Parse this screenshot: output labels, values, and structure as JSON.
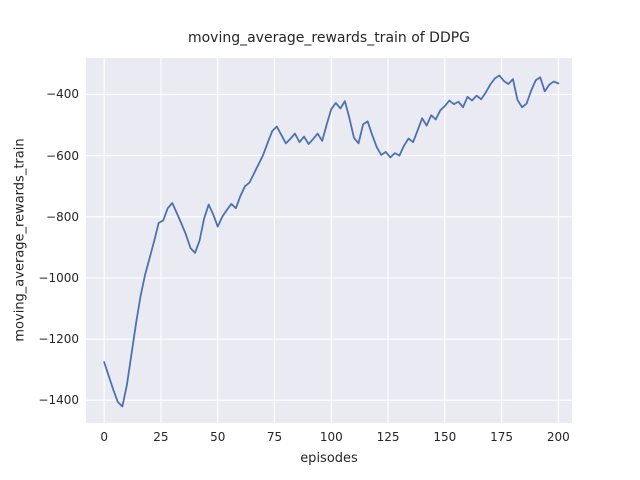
{
  "figure": {
    "background": "#ffffff",
    "axes_background": "#eaeaf2",
    "grid_color": "#ffffff",
    "text_color": "#262626"
  },
  "chart_data": {
    "type": "line",
    "title": "moving_average_rewards_train of DDPG",
    "xlabel": "episodes",
    "ylabel": "moving_average_rewards_train",
    "line_color": "#4c72b0",
    "line_width": 1.8,
    "grid": true,
    "legend": null,
    "xlim": [
      -8,
      206
    ],
    "ylim": [
      -1474,
      -281
    ],
    "xticks": [
      0,
      25,
      50,
      75,
      100,
      125,
      150,
      175,
      200
    ],
    "yticks": [
      -1400,
      -1200,
      -1000,
      -800,
      -600,
      -400
    ],
    "x": [
      0,
      2,
      4,
      6,
      8,
      10,
      12,
      14,
      16,
      18,
      20,
      22,
      24,
      26,
      28,
      30,
      32,
      34,
      36,
      38,
      40,
      42,
      44,
      46,
      48,
      50,
      52,
      54,
      56,
      58,
      60,
      62,
      64,
      66,
      68,
      70,
      72,
      74,
      76,
      78,
      80,
      82,
      84,
      86,
      88,
      90,
      92,
      94,
      96,
      98,
      100,
      102,
      104,
      106,
      108,
      110,
      112,
      114,
      116,
      118,
      120,
      122,
      124,
      126,
      128,
      130,
      132,
      134,
      136,
      138,
      140,
      142,
      144,
      146,
      148,
      150,
      152,
      154,
      156,
      158,
      160,
      162,
      164,
      166,
      168,
      170,
      172,
      174,
      176,
      178,
      180,
      182,
      184,
      186,
      188,
      190,
      192,
      194,
      196,
      198,
      200
    ],
    "y": [
      -1275,
      -1320,
      -1365,
      -1405,
      -1420,
      -1350,
      -1250,
      -1150,
      -1060,
      -990,
      -935,
      -880,
      -820,
      -812,
      -772,
      -755,
      -788,
      -822,
      -858,
      -902,
      -918,
      -878,
      -806,
      -760,
      -792,
      -832,
      -800,
      -778,
      -758,
      -772,
      -732,
      -700,
      -688,
      -658,
      -628,
      -598,
      -558,
      -520,
      -505,
      -532,
      -560,
      -545,
      -528,
      -556,
      -538,
      -562,
      -546,
      -528,
      -552,
      -498,
      -448,
      -428,
      -446,
      -422,
      -478,
      -542,
      -560,
      -498,
      -488,
      -532,
      -572,
      -598,
      -588,
      -606,
      -592,
      -600,
      -568,
      -544,
      -556,
      -518,
      -478,
      -502,
      -468,
      -482,
      -452,
      -438,
      -420,
      -432,
      -424,
      -442,
      -408,
      -420,
      -404,
      -416,
      -394,
      -368,
      -348,
      -338,
      -356,
      -366,
      -350,
      -418,
      -442,
      -430,
      -388,
      -354,
      -344,
      -390,
      -368,
      -358,
      -364
    ]
  }
}
